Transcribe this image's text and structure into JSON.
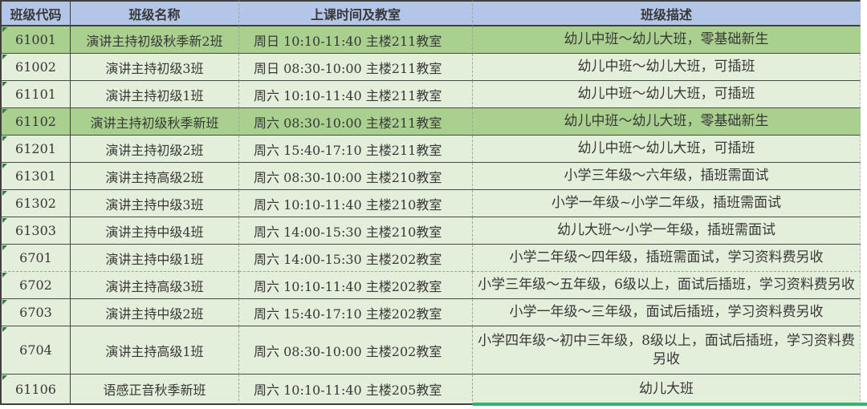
{
  "table": {
    "columns": [
      {
        "key": "code",
        "label": "班级代码"
      },
      {
        "key": "name",
        "label": "班级名称"
      },
      {
        "key": "schedule",
        "label": "上课时间及教室"
      },
      {
        "key": "description",
        "label": "班级描述"
      }
    ],
    "rows": [
      {
        "code": "61001",
        "name": "演讲主持初级秋季新2班",
        "schedule": "周日  10:10-11:40  主楼211教室",
        "description": "幼儿中班～幼儿大班，零基础新生",
        "highlighted": true
      },
      {
        "code": "61002",
        "name": "演讲主持初级3班",
        "schedule": "周日  08:30-10:00  主楼211教室",
        "description": "幼儿中班～幼儿大班，可插班",
        "highlighted": false
      },
      {
        "code": "61101",
        "name": "演讲主持初级1班",
        "schedule": "周六  10:10-11:40  主楼211教室",
        "description": "幼儿中班～幼儿大班，可插班",
        "highlighted": false
      },
      {
        "code": "61102",
        "name": "演讲主持初级秋季新班",
        "schedule": "周六  08:30-10:00  主楼211教室",
        "description": "幼儿中班～幼儿大班，零基础新生",
        "highlighted": true
      },
      {
        "code": "61201",
        "name": "演讲主持初级2班",
        "schedule": "周六  15:40-17:10  主楼211教室",
        "description": "幼儿中班～幼儿大班，可插班",
        "highlighted": false
      },
      {
        "code": "61301",
        "name": "演讲主持高级2班",
        "schedule": "周六  08:30-10:00  主楼210教室",
        "description": "小学三年级～六年级，插班需面试",
        "highlighted": false
      },
      {
        "code": "61302",
        "name": "演讲主持中级3班",
        "schedule": "周六  10:10-11:40  主楼210教室",
        "description": "小学一年级~小学二年级，插班需面试",
        "highlighted": false
      },
      {
        "code": "61303",
        "name": "演讲主持中级4班",
        "schedule": "周六  14:00-15:30  主楼210教室",
        "description": "幼儿大班～小学一年级，插班需面试",
        "highlighted": false
      },
      {
        "code": "6701",
        "name": "演讲主持中级1班",
        "schedule": "周六  14:00-15:30  主楼202教室",
        "description": "小学二年级～四年级，插班需面试，学习资料费另收",
        "highlighted": false
      },
      {
        "code": "6702",
        "name": "演讲主持高级3班",
        "schedule": "周六  10:10-11:40  主楼202教室",
        "description": "小学三年级～五年级，6级以上，面试后插班，学习资料费另收",
        "highlighted": false
      },
      {
        "code": "6703",
        "name": "演讲主持中级2班",
        "schedule": "周六  15:40-17:10  主楼202教室",
        "description": "小学一年级～三年级，面试后插班，学习资料费另收",
        "highlighted": false
      },
      {
        "code": "6704",
        "name": "演讲主持高级1班",
        "schedule": "周六  08:30-10:00  主楼202教室",
        "description": "小学四年级～初中三年级，8级以上，面试后插班，学习资料费另收",
        "highlighted": false
      },
      {
        "code": "61106",
        "name": "语感正音秋季新班",
        "schedule": "周六  10:10-11:40  主楼205教室",
        "description": "幼儿大班",
        "highlighted": false
      }
    ]
  },
  "icons": {
    "cell_corner_indicator": "number-stored-as-text-triangle"
  },
  "colors": {
    "header_bg": "#b4c6e7",
    "row_light": "#e3eedb",
    "row_highlight": "#a9d08e",
    "border_dark": "#3f3f3f",
    "teal_line": "#29b873",
    "triangle_indicator": "#2e7d46",
    "text": "#383838"
  }
}
